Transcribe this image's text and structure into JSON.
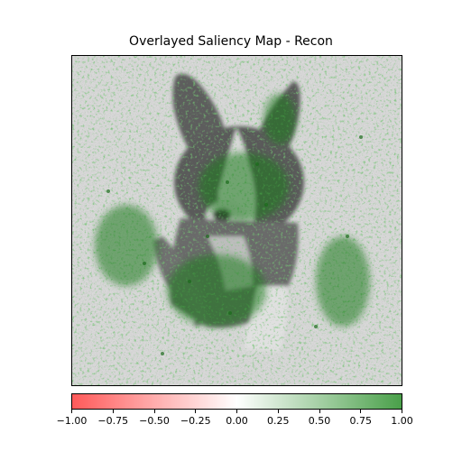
{
  "figure": {
    "title": "Overlayed Saliency Map - Recon"
  },
  "image": {
    "subject": "corgi-dog-photo",
    "overlay_positive_color": "#2e8b2e",
    "overlay_negative_color": "#ff4d4d"
  },
  "colorbar": {
    "min": -1.0,
    "max": 1.0,
    "negative_color": "#ff5a5a",
    "mid_color": "#ffffff",
    "positive_color": "#4aa04a",
    "ticks": [
      {
        "value": -1.0,
        "label": "−1.00"
      },
      {
        "value": -0.75,
        "label": "−0.75"
      },
      {
        "value": -0.5,
        "label": "−0.50"
      },
      {
        "value": -0.25,
        "label": "−0.25"
      },
      {
        "value": 0.0,
        "label": "0.00"
      },
      {
        "value": 0.25,
        "label": "0.25"
      },
      {
        "value": 0.5,
        "label": "0.50"
      },
      {
        "value": 0.75,
        "label": "0.75"
      },
      {
        "value": 1.0,
        "label": "1.00"
      }
    ]
  }
}
